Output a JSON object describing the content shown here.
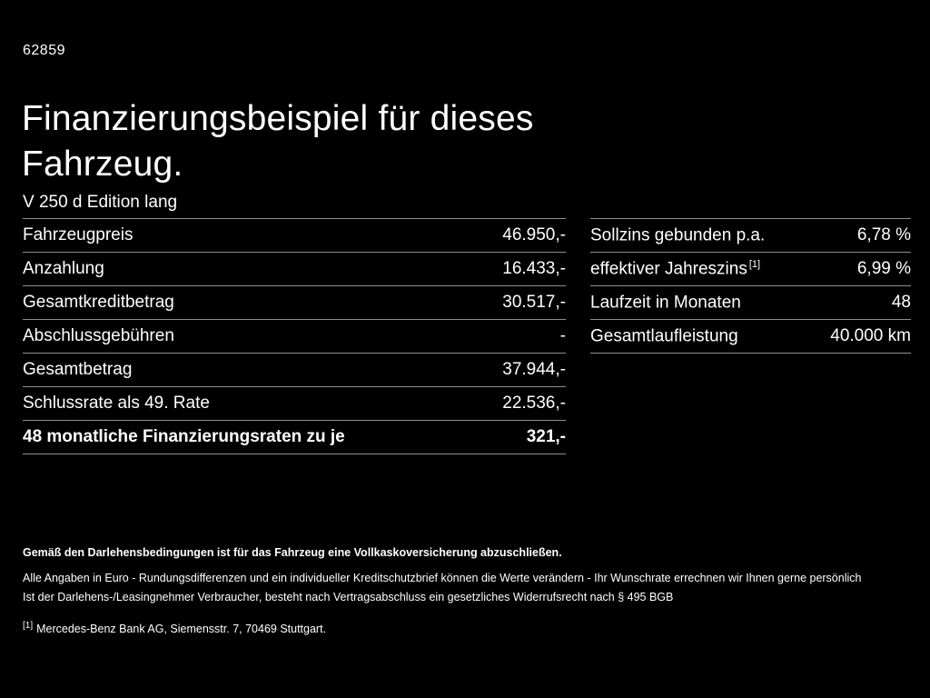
{
  "page": {
    "id": "62859",
    "title": "Finanzierungsbeispiel für dieses Fahrzeug.",
    "vehicle": "V 250 d Edition lang"
  },
  "left_table": {
    "rows": [
      {
        "label": "Fahrzeugpreis",
        "value": "46.950,-"
      },
      {
        "label": "Anzahlung",
        "value": "16.433,-"
      },
      {
        "label": "Gesamtkreditbetrag",
        "value": "30.517,-"
      },
      {
        "label": "Abschlussgebühren",
        "value": "-"
      },
      {
        "label": "Gesamtbetrag",
        "value": "37.944,-"
      },
      {
        "label": "Schlussrate als 49. Rate",
        "value": "22.536,-"
      },
      {
        "label": "48 monatliche Finanzierungsraten zu je",
        "value": "321,-"
      }
    ]
  },
  "right_table": {
    "rows": [
      {
        "label": "Sollzins gebunden p.a.",
        "sup": "",
        "value": "6,78 %"
      },
      {
        "label": "effektiver Jahreszins",
        "sup": "[1]",
        "value": "6,99 %"
      },
      {
        "label": "Laufzeit in Monaten",
        "sup": "",
        "value": "48"
      },
      {
        "label": "Gesamtlaufleistung",
        "sup": "",
        "value": "40.000 km"
      }
    ]
  },
  "footer": {
    "bold_note": "Gemäß den Darlehensbedingungen ist für das Fahrzeug eine Vollkaskoversicherung abzuschließen.",
    "note1": "Alle Angaben in Euro - Rundungsdifferenzen und ein individueller Kreditschutzbrief können die Werte verändern - Ihr Wunschrate errechnen wir Ihnen gerne persönlich",
    "note2": "Ist der Darlehens-/Leasingnehmer Verbraucher, besteht nach Vertragsabschluss ein gesetzliches Widerrufsrecht nach § 495 BGB",
    "footnote_marker": "[1]",
    "footnote_text": "Mercedes-Benz Bank AG, Siemensstr. 7, 70469 Stuttgart."
  },
  "colors": {
    "background": "#000000",
    "text": "#ffffff",
    "divider": "#8f8f8f"
  }
}
